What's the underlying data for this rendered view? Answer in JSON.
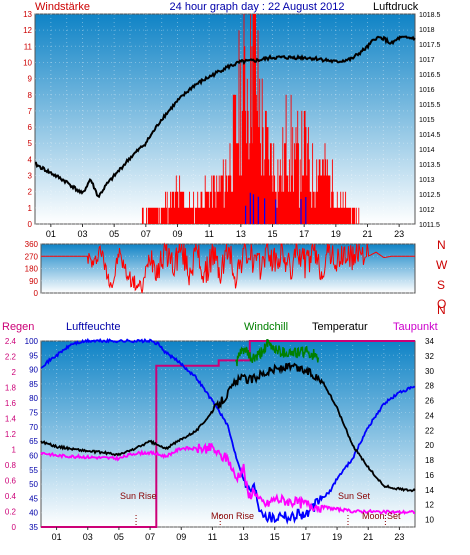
{
  "header": {
    "left_label": "Windstärke",
    "title": "24 hour graph day : 22 August 2012",
    "right_label": "Luftdruck"
  },
  "direction_axis": {
    "labels": [
      "N",
      "W",
      "S",
      "O",
      "N"
    ]
  },
  "bottom_header": {
    "regen": "Regen",
    "luftfeuchte": "Luftfeuchte",
    "windchill": "Windchill",
    "temperatur": "Temperatur",
    "taupunkt": "Taupunkt"
  },
  "annotations": {
    "sun_rise": "Sun Rise",
    "moon_rise": "Moon Rise",
    "sun_set": "Sun Set",
    "moon_set": "Moon Set",
    "sun_set_axis": "19 Sun Set"
  },
  "colors": {
    "plot_top": "#0f83c6",
    "plot_bottom": "#ffffff",
    "wind": "#ff0000",
    "wind_gust": "#0000ff",
    "pressure": "#000000",
    "humidity": "#0000ff",
    "temperature": "#000000",
    "dewpoint": "#ff00ff",
    "windchill": "#008000",
    "rain": "#cc0077",
    "marker": "#880000"
  },
  "chart_data": [
    {
      "type": "bar",
      "x_ticks": [
        "01",
        "03",
        "05",
        "07",
        "09",
        "11",
        "13",
        "15",
        "17",
        "19",
        "21",
        "23"
      ],
      "left_axis": {
        "name": "Windstärke",
        "ticks": [
          "0",
          "1",
          "2",
          "3",
          "4",
          "5",
          "6",
          "7",
          "8",
          "9",
          "10",
          "11",
          "12",
          "13"
        ],
        "ylim": [
          0,
          13
        ]
      },
      "right_axis": {
        "name": "Luftdruck",
        "ticks": [
          "1011.5",
          "1012",
          "1012.5",
          "1013",
          "1013.5",
          "1014",
          "1014.5",
          "1015",
          "1015.5",
          "1016",
          "1016.5",
          "1017",
          "1017.5",
          "1018",
          "1018.5"
        ],
        "ylim": [
          1011.5,
          1018.5
        ]
      },
      "xlim": [
        0,
        24
      ],
      "series": [
        {
          "name": "Windstärke",
          "axis": "left",
          "x": [
            0,
            2,
            4,
            6,
            7.5,
            8,
            9,
            10,
            11,
            11.5,
            12,
            12.5,
            13,
            13.5,
            13.8,
            14,
            14.5,
            15,
            15.5,
            16,
            16.5,
            17,
            17.5,
            18,
            18.5,
            19,
            19.5,
            20,
            21,
            22,
            23,
            24
          ],
          "values": [
            0,
            0,
            0,
            0,
            1,
            1,
            2,
            1,
            2,
            2,
            3,
            5,
            8,
            10,
            13,
            9,
            5,
            4,
            3,
            6,
            4,
            5,
            3,
            4,
            3,
            2,
            1,
            1,
            0,
            0,
            0,
            0
          ]
        },
        {
          "name": "Luftdruck",
          "axis": "right",
          "x": [
            0,
            1,
            2,
            3,
            3.5,
            4,
            4.5,
            5,
            6,
            7,
            8,
            9,
            10,
            11,
            12,
            13,
            14,
            15,
            16,
            17,
            18,
            19,
            20,
            21,
            21.5,
            22,
            22.5,
            23,
            24
          ],
          "values": [
            1013.5,
            1013.2,
            1012.9,
            1012.5,
            1013,
            1012.4,
            1012.8,
            1013.1,
            1013.7,
            1014.2,
            1015,
            1015.6,
            1016.1,
            1016.4,
            1016.7,
            1016.9,
            1016.95,
            1017.05,
            1017.05,
            1017.05,
            1017.0,
            1016.9,
            1017.0,
            1017.4,
            1017.7,
            1017.7,
            1017.5,
            1017.7,
            1017.7
          ]
        }
      ]
    },
    {
      "type": "line",
      "y_ticks": [
        "0",
        "90",
        "180",
        "270",
        "360"
      ],
      "ylim": [
        0,
        360
      ],
      "xlim": [
        0,
        24
      ],
      "series": [
        {
          "name": "Windrichtung",
          "x": [
            0,
            1,
            2,
            3,
            3.4,
            3.8,
            4.2,
            4.6,
            5,
            5.5,
            6,
            6.5,
            7,
            7.5,
            8,
            8.5,
            9,
            9.5,
            10,
            10.5,
            11,
            11.5,
            12,
            12.5,
            13,
            13.5,
            14,
            14.5,
            15,
            15.5,
            16,
            16.5,
            17,
            17.5,
            18,
            18.5,
            19,
            19.5,
            20,
            20.5,
            21,
            21.5,
            22,
            22.5,
            23,
            23.5,
            24
          ],
          "values": [
            270,
            270,
            270,
            270,
            200,
            340,
            150,
            60,
            300,
            140,
            70,
            30,
            300,
            170,
            330,
            200,
            340,
            150,
            320,
            100,
            300,
            140,
            330,
            120,
            300,
            260,
            180,
            320,
            220,
            300,
            160,
            330,
            200,
            300,
            160,
            320,
            210,
            290,
            250,
            330,
            270,
            300,
            260,
            270,
            270,
            270,
            270
          ]
        }
      ]
    },
    {
      "type": "line",
      "x_ticks": [
        "01",
        "03",
        "05",
        "07",
        "09",
        "11",
        "13",
        "15",
        "17",
        "19",
        "21",
        "23"
      ],
      "xlim": [
        0,
        24
      ],
      "axes": {
        "Regen": {
          "ticks": [
            "0",
            "0.2",
            "0.4",
            "0.6",
            "0.8",
            "1",
            "1.2",
            "1.4",
            "1.6",
            "1.8",
            "2",
            "2.2",
            "2.4"
          ],
          "ylim": [
            0,
            2.4
          ]
        },
        "Luftfeuchte": {
          "ticks": [
            "35",
            "40",
            "45",
            "50",
            "55",
            "60",
            "65",
            "70",
            "75",
            "80",
            "85",
            "90",
            "95",
            "100"
          ],
          "ylim": [
            35,
            100
          ]
        },
        "Temperatur": {
          "ticks": [
            "10",
            "12",
            "14",
            "16",
            "18",
            "20",
            "22",
            "24",
            "26",
            "28",
            "30",
            "32",
            "34"
          ],
          "ylim": [
            9,
            34
          ]
        }
      },
      "series": [
        {
          "name": "Luftfeuchte",
          "axis": "Luftfeuchte",
          "x": [
            0,
            0.5,
            1,
            2,
            3,
            4,
            5,
            6,
            7,
            7.5,
            8,
            9,
            10,
            10.5,
            11,
            11.5,
            12,
            12.5,
            13,
            13.3,
            13.7,
            14,
            14.5,
            15,
            15.5,
            16,
            16.5,
            17,
            17.5,
            18,
            18.5,
            19,
            20,
            21,
            22,
            23,
            24
          ],
          "values": [
            91,
            93,
            95,
            99,
            100,
            100,
            100,
            100,
            100,
            99,
            96,
            92,
            87,
            83,
            79,
            75,
            70,
            60,
            52,
            48,
            49,
            42,
            39,
            38,
            40,
            38,
            40,
            39,
            42,
            45,
            47,
            52,
            59,
            70,
            78,
            82,
            84
          ]
        },
        {
          "name": "Temperatur",
          "axis": "Temperatur",
          "x": [
            0,
            1,
            2,
            3,
            4,
            5,
            6,
            7,
            8,
            9,
            10,
            11,
            12,
            12.5,
            13,
            13.5,
            14,
            15,
            16,
            17,
            18,
            19,
            20,
            21,
            22,
            23,
            24
          ],
          "values": [
            20.5,
            19.8,
            19.5,
            19.2,
            19.0,
            18.7,
            19.5,
            20.5,
            19.5,
            20.8,
            22,
            24.5,
            27,
            28.5,
            29,
            28.8,
            29.5,
            30.2,
            30.5,
            30,
            28.8,
            25,
            20,
            17,
            14.5,
            14.1,
            13.9
          ]
        },
        {
          "name": "Taupunkt",
          "axis": "Temperatur",
          "x": [
            0,
            1,
            2,
            3,
            4,
            5,
            6,
            7,
            8,
            9,
            10,
            11,
            11.5,
            12,
            12.5,
            13,
            13.3,
            13.7,
            14,
            14.5,
            15,
            16,
            17,
            18,
            19,
            20,
            21,
            22,
            23,
            24
          ],
          "values": [
            19,
            18.6,
            18.5,
            18.4,
            18.3,
            18.2,
            18.9,
            19.0,
            18.5,
            19.6,
            19.5,
            19.6,
            18.5,
            18.2,
            15.5,
            17,
            13,
            14,
            12.5,
            12,
            12.8,
            12.4,
            12.1,
            11.7,
            11.4,
            11.1,
            11.1,
            11,
            11,
            11
          ]
        },
        {
          "name": "Windchill",
          "axis": "Temperatur",
          "x": [
            12.5,
            13,
            13.5,
            14,
            14.5,
            15,
            15.5,
            16,
            16.5,
            17,
            17.5,
            17.8
          ],
          "values": [
            31,
            33,
            31.5,
            32,
            33.5,
            33,
            32.5,
            32.4,
            32.4,
            32.6,
            32.2,
            31
          ]
        },
        {
          "name": "Regen",
          "axis": "Regen",
          "x": [
            0,
            7.4,
            7.4,
            11.4,
            11.4,
            13.4,
            13.4,
            24
          ],
          "values": [
            0,
            0,
            2.08,
            2.08,
            2.15,
            2.15,
            2.4,
            2.4
          ]
        }
      ],
      "markers": [
        {
          "label": "Sun Rise",
          "x": 6.1
        },
        {
          "label": "Moon Rise",
          "x": 11.5
        },
        {
          "label": "Sun Set",
          "x": 19.7
        },
        {
          "label": "Moon Set",
          "x": 22.1
        }
      ]
    }
  ]
}
